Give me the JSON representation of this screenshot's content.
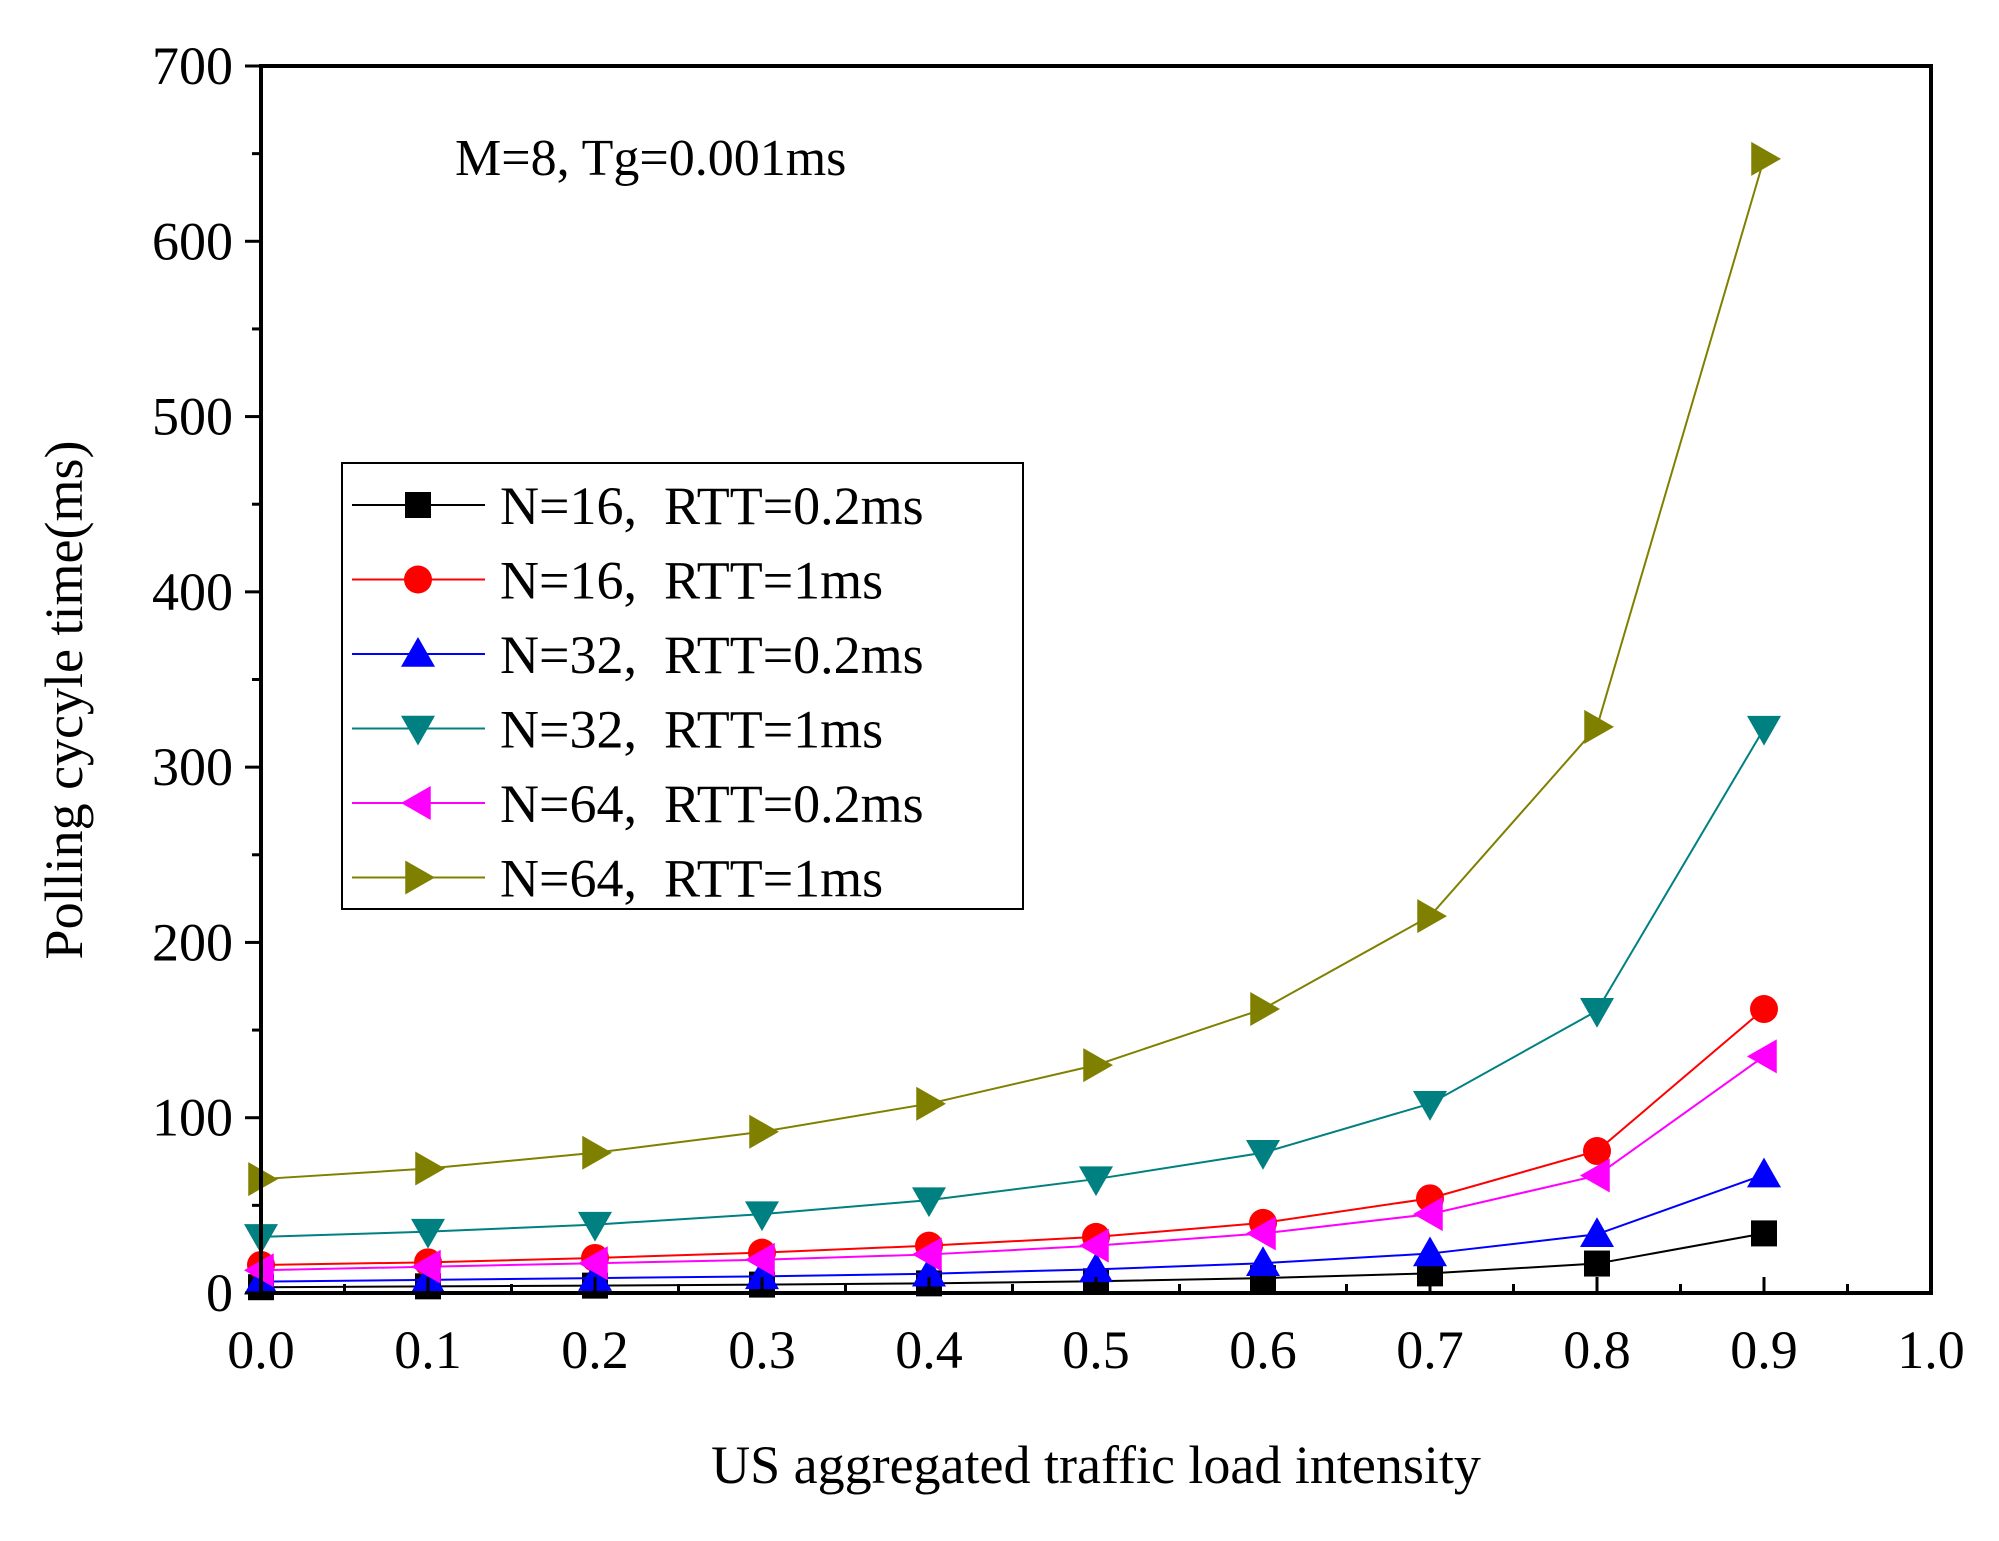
{
  "chart_data": {
    "type": "line",
    "title": "",
    "annotation": "M=8, Tg=0.001ms",
    "xlabel": "US aggregated traffic load intensity",
    "ylabel": "Polling cycyle time(ms)",
    "xlim": [
      0.0,
      1.0
    ],
    "ylim": [
      0,
      700
    ],
    "xticks": [
      "0.0",
      "0.1",
      "0.2",
      "0.3",
      "0.4",
      "0.5",
      "0.6",
      "0.7",
      "0.8",
      "0.9",
      "1.0"
    ],
    "yticks": [
      "0",
      "100",
      "200",
      "300",
      "400",
      "500",
      "600",
      "700"
    ],
    "grid": false,
    "legend_position": "middle-left",
    "x": [
      0.0,
      0.1,
      0.2,
      0.3,
      0.4,
      0.5,
      0.6,
      0.7,
      0.8,
      0.9
    ],
    "series": [
      {
        "name": "N=16,  RTT=0.2ms",
        "color": "#000000",
        "marker": "square",
        "values": [
          3.3,
          3.8,
          4.2,
          4.8,
          5.5,
          6.7,
          8.5,
          11.2,
          16.8,
          34
        ]
      },
      {
        "name": "N=16,  RTT=1ms",
        "color": "#ff0000",
        "marker": "circle",
        "values": [
          16,
          17.5,
          20,
          23,
          27,
          32,
          40,
          54,
          81,
          162
        ]
      },
      {
        "name": "N=32,  RTT=0.2ms",
        "color": "#0000ff",
        "marker": "triangle-up",
        "values": [
          6.5,
          7.5,
          8.5,
          9.5,
          11,
          13.5,
          17,
          22.5,
          33.5,
          67.5
        ]
      },
      {
        "name": "N=32,  RTT=1ms",
        "color": "#008080",
        "marker": "triangle-down",
        "values": [
          32,
          35,
          39,
          45,
          53,
          65,
          80,
          108,
          161,
          322
        ]
      },
      {
        "name": "N=64,  RTT=0.2ms",
        "color": "#ff00ff",
        "marker": "triangle-left",
        "values": [
          13,
          15,
          17,
          19,
          22,
          27,
          34,
          45,
          67,
          135
        ]
      },
      {
        "name": "N=64,  RTT=1ms",
        "color": "#808000",
        "marker": "triangle-right",
        "values": [
          65,
          71,
          80,
          92,
          108,
          130,
          162,
          215,
          323,
          647
        ]
      }
    ]
  }
}
